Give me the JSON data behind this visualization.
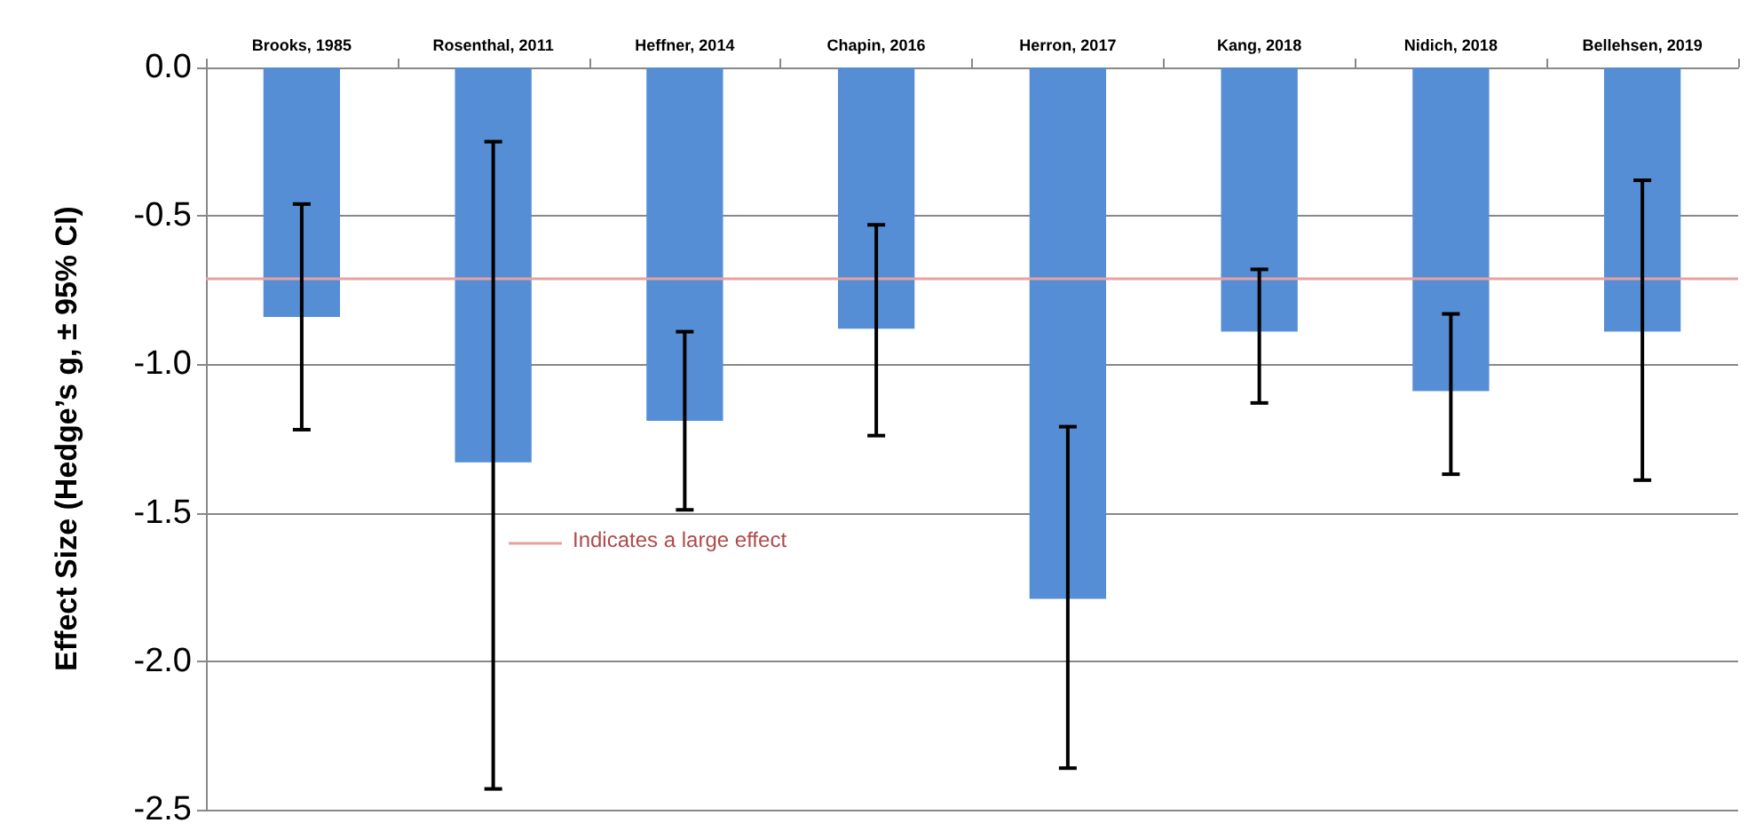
{
  "chart_data": {
    "type": "bar",
    "ylabel": "Effect Size (Hedge’s g, ± 95% CI)",
    "categories": [
      "Brooks, 1985",
      "Rosenthal, 2011",
      "Heffner, 2014",
      "Chapin, 2016",
      "Herron, 2017",
      "Kang, 2018",
      "Nidich, 2018",
      "Bellehsen, 2019"
    ],
    "values": [
      -0.84,
      -1.33,
      -1.19,
      -0.88,
      -1.79,
      -0.89,
      -1.09,
      -0.89
    ],
    "errors": [
      [
        -1.22,
        -0.46
      ],
      [
        -2.43,
        -0.25
      ],
      [
        -1.49,
        -0.89
      ],
      [
        -1.24,
        -0.53
      ],
      [
        -2.36,
        -1.21
      ],
      [
        -1.13,
        -0.68
      ],
      [
        -1.37,
        -0.83
      ],
      [
        -1.39,
        -0.38
      ]
    ],
    "color": "#558ed5",
    "ylim": [
      -2.5,
      0
    ],
    "yticks": [
      {
        "value": 0,
        "label": "0.0"
      },
      {
        "value": -0.5,
        "label": "-0.5"
      },
      {
        "value": -1,
        "label": "-1.0"
      },
      {
        "value": -1.5,
        "label": "-1.5"
      },
      {
        "value": -2,
        "label": "-2.0"
      },
      {
        "value": -2.5,
        "label": "-2.5"
      }
    ],
    "grid": "y",
    "ref_lines": [
      {
        "axis": "y",
        "value": -0.71,
        "label": "Indicates a large effect",
        "color": "#e8a0a0"
      }
    ]
  }
}
